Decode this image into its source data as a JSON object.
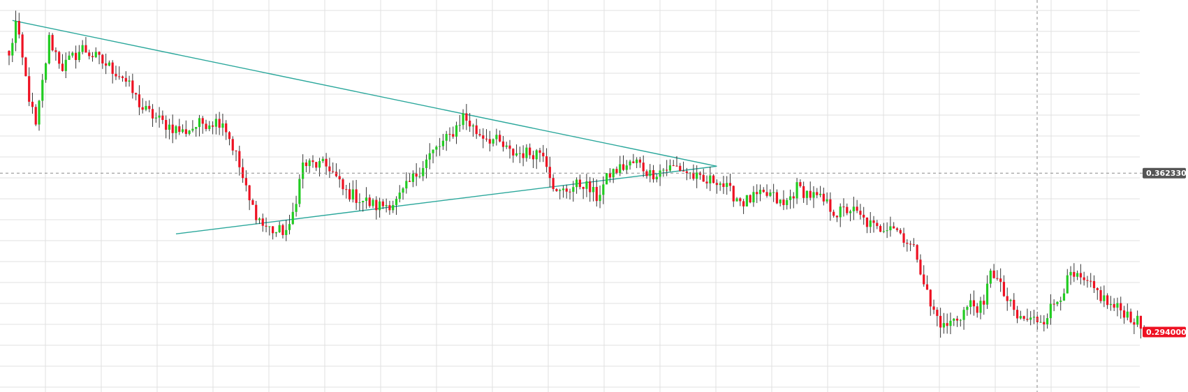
{
  "chart_data": {
    "type": "candlestick",
    "title": "",
    "xlabel": "",
    "ylabel": "",
    "ylim": [
      0.27,
      0.435
    ],
    "grid": true,
    "colors": {
      "up": "#22cc22",
      "down": "#ee1122",
      "trendline": "#2aa79b",
      "crosshair": "#888888",
      "grid": "#e0e0e0",
      "crosshair_label_bg": "#555555",
      "last_price_label_bg": "#ee1122"
    },
    "crosshair": {
      "price": 0.36233,
      "label": "0.362330"
    },
    "last_price": {
      "price": 0.294,
      "label": "0.294000"
    },
    "trendlines": [
      {
        "name": "upper",
        "from": {
          "bar": 1,
          "price": 0.428
        },
        "to": {
          "bar": 212,
          "price": 0.3653
        }
      },
      {
        "name": "lower",
        "from": {
          "bar": 50,
          "price": 0.3362
        },
        "to": {
          "bar": 212,
          "price": 0.3653
        }
      }
    ],
    "anchors": [
      [
        0,
        0.412
      ],
      [
        2,
        0.427
      ],
      [
        6,
        0.395
      ],
      [
        8,
        0.382
      ],
      [
        12,
        0.42
      ],
      [
        16,
        0.408
      ],
      [
        22,
        0.416
      ],
      [
        28,
        0.41
      ],
      [
        34,
        0.404
      ],
      [
        40,
        0.39
      ],
      [
        46,
        0.384
      ],
      [
        52,
        0.38
      ],
      [
        58,
        0.384
      ],
      [
        64,
        0.385
      ],
      [
        68,
        0.37
      ],
      [
        72,
        0.35
      ],
      [
        76,
        0.34
      ],
      [
        80,
        0.337
      ],
      [
        84,
        0.338
      ],
      [
        88,
        0.366
      ],
      [
        92,
        0.366
      ],
      [
        96,
        0.365
      ],
      [
        100,
        0.355
      ],
      [
        104,
        0.352
      ],
      [
        110,
        0.348
      ],
      [
        116,
        0.35
      ],
      [
        120,
        0.358
      ],
      [
        126,
        0.37
      ],
      [
        132,
        0.378
      ],
      [
        136,
        0.387
      ],
      [
        140,
        0.38
      ],
      [
        146,
        0.376
      ],
      [
        150,
        0.371
      ],
      [
        156,
        0.371
      ],
      [
        160,
        0.372
      ],
      [
        164,
        0.353
      ],
      [
        168,
        0.356
      ],
      [
        172,
        0.358
      ],
      [
        176,
        0.352
      ],
      [
        180,
        0.362
      ],
      [
        184,
        0.365
      ],
      [
        188,
        0.367
      ],
      [
        192,
        0.362
      ],
      [
        196,
        0.364
      ],
      [
        200,
        0.365
      ],
      [
        204,
        0.362
      ],
      [
        208,
        0.358
      ],
      [
        212,
        0.36
      ],
      [
        216,
        0.354
      ],
      [
        220,
        0.35
      ],
      [
        224,
        0.352
      ],
      [
        228,
        0.353
      ],
      [
        232,
        0.348
      ],
      [
        236,
        0.356
      ],
      [
        240,
        0.353
      ],
      [
        244,
        0.35
      ],
      [
        248,
        0.345
      ],
      [
        252,
        0.347
      ],
      [
        256,
        0.342
      ],
      [
        260,
        0.338
      ],
      [
        264,
        0.341
      ],
      [
        268,
        0.335
      ],
      [
        272,
        0.327
      ],
      [
        276,
        0.305
      ],
      [
        280,
        0.296
      ],
      [
        284,
        0.3
      ],
      [
        288,
        0.306
      ],
      [
        292,
        0.304
      ],
      [
        294,
        0.322
      ],
      [
        298,
        0.31
      ],
      [
        302,
        0.3
      ],
      [
        306,
        0.299
      ],
      [
        310,
        0.3
      ],
      [
        314,
        0.308
      ],
      [
        318,
        0.318
      ],
      [
        322,
        0.315
      ],
      [
        326,
        0.311
      ],
      [
        330,
        0.305
      ],
      [
        334,
        0.303
      ],
      [
        338,
        0.298
      ],
      [
        340,
        0.294
      ]
    ]
  }
}
